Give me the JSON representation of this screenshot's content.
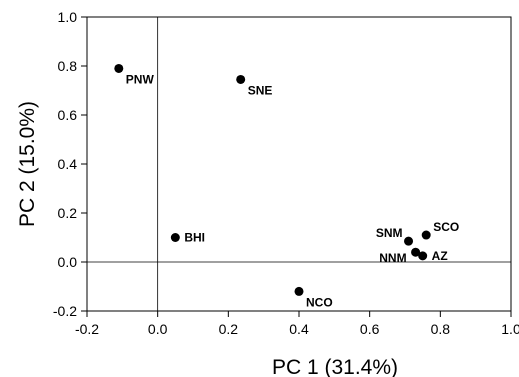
{
  "chart_data": {
    "type": "scatter",
    "title": "",
    "xlabel": "PC 1 (31.4%)",
    "ylabel": "PC 2 (15.0%)",
    "xlim": [
      -0.2,
      1.0
    ],
    "ylim": [
      -0.2,
      1.0
    ],
    "x_ticks": [
      "-0.2",
      "0.0",
      "0.2",
      "0.4",
      "0.6",
      "0.8",
      "1.0"
    ],
    "y_ticks": [
      "-0.2",
      "0.0",
      "0.2",
      "0.4",
      "0.6",
      "0.8",
      "1.0"
    ],
    "reference_lines": {
      "x": 0,
      "y": 0
    },
    "grid": false,
    "legend": "none",
    "marker_color": "#000000",
    "points": [
      {
        "label": "PNW",
        "x": -0.11,
        "y": 0.79,
        "label_side": "below-right"
      },
      {
        "label": "SNE",
        "x": 0.235,
        "y": 0.745,
        "label_side": "below-right"
      },
      {
        "label": "BHI",
        "x": 0.05,
        "y": 0.1,
        "label_side": "right"
      },
      {
        "label": "NCO",
        "x": 0.4,
        "y": -0.12,
        "label_side": "below-right"
      },
      {
        "label": "SNM",
        "x": 0.71,
        "y": 0.085,
        "label_side": "above-left"
      },
      {
        "label": "SCO",
        "x": 0.76,
        "y": 0.11,
        "label_side": "above-right"
      },
      {
        "label": "NNM",
        "x": 0.73,
        "y": 0.04,
        "label_side": "left"
      },
      {
        "label": "AZ",
        "x": 0.75,
        "y": 0.025,
        "label_side": "right"
      }
    ]
  }
}
